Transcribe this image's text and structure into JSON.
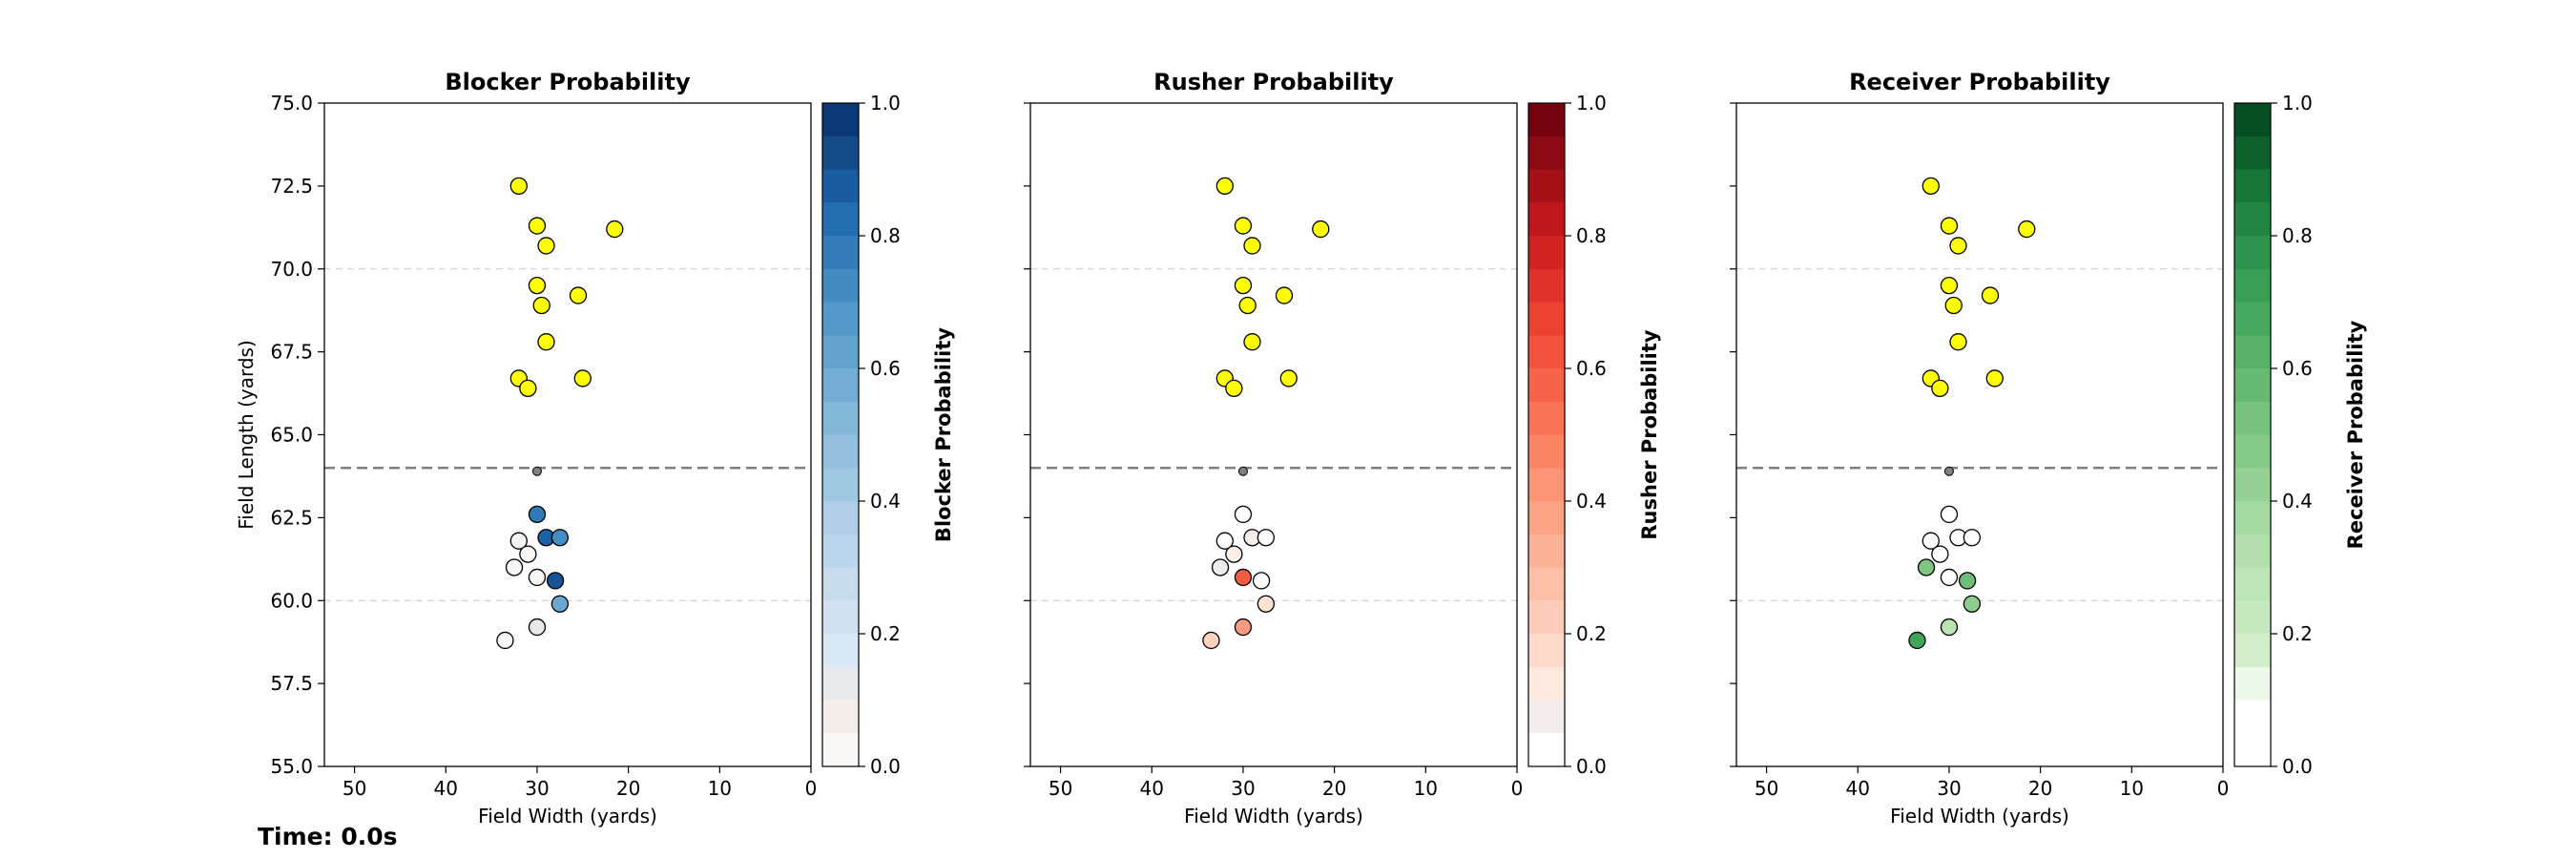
{
  "time_label": "Time: 0.0s",
  "colors": {
    "offense_fill": "#ffff00",
    "ball_fill": "#808080",
    "marker_edge": "#000000",
    "line_of_scrimmage": "#808080",
    "gridline": "#d3d3d3"
  },
  "chart_data": [
    {
      "type": "scatter",
      "title": "Blocker Probability",
      "xlabel": "Field Width (yards)",
      "ylabel": "Field Length (yards)",
      "xlim": [
        53.3,
        0
      ],
      "ylim": [
        55,
        75
      ],
      "x_inverted": true,
      "xticks": [
        "50",
        "40",
        "30",
        "20",
        "10",
        "0"
      ],
      "yticks": [
        "55.0",
        "57.5",
        "60.0",
        "62.5",
        "65.0",
        "67.5",
        "70.0",
        "72.5",
        "75.0"
      ],
      "grid": "horizontal dashed",
      "line_of_scrimmage_y": 64.0,
      "colormap": "Blues",
      "colorbar_label": "Blocker Probability",
      "colorbar_range": [
        0,
        1
      ],
      "colorbar_ticks": [
        "0.0",
        "0.2",
        "0.4",
        "0.6",
        "0.8",
        "1.0"
      ],
      "colormap_stops": [
        [
          0,
          "#ffffff"
        ],
        [
          0.1,
          "#f0e8e2"
        ],
        [
          0.15,
          "#dfeaf6"
        ],
        [
          0.3,
          "#c2d8ec"
        ],
        [
          0.5,
          "#8cbddb"
        ],
        [
          0.7,
          "#4a93c6"
        ],
        [
          0.85,
          "#1c65a9"
        ],
        [
          1,
          "#08306b"
        ]
      ],
      "offense": [
        [
          32,
          72.5
        ],
        [
          30,
          71.3
        ],
        [
          29,
          70.7
        ],
        [
          21.5,
          71.2
        ],
        [
          30,
          69.5
        ],
        [
          29.5,
          68.9
        ],
        [
          25.5,
          69.2
        ],
        [
          29,
          67.8
        ],
        [
          32,
          66.7
        ],
        [
          31,
          66.4
        ],
        [
          25,
          66.7
        ]
      ],
      "ball": [
        30,
        63.9
      ],
      "defense": [
        {
          "x": 30,
          "y": 62.6,
          "p": 0.78
        },
        {
          "x": 32,
          "y": 61.8,
          "p": 0.05
        },
        {
          "x": 31,
          "y": 61.4,
          "p": 0.05
        },
        {
          "x": 29,
          "y": 61.9,
          "p": 0.86
        },
        {
          "x": 27.5,
          "y": 61.9,
          "p": 0.72
        },
        {
          "x": 32.5,
          "y": 61.0,
          "p": 0.05
        },
        {
          "x": 30,
          "y": 60.7,
          "p": 0.05
        },
        {
          "x": 28,
          "y": 60.6,
          "p": 0.9
        },
        {
          "x": 27.5,
          "y": 59.9,
          "p": 0.6
        },
        {
          "x": 30,
          "y": 59.2,
          "p": 0.12
        },
        {
          "x": 33.5,
          "y": 58.8,
          "p": 0.04
        }
      ]
    },
    {
      "type": "scatter",
      "title": "Rusher Probability",
      "xlabel": "Field Width (yards)",
      "ylabel": "",
      "xlim": [
        53.3,
        0
      ],
      "ylim": [
        55,
        75
      ],
      "x_inverted": true,
      "xticks": [
        "50",
        "40",
        "30",
        "20",
        "10",
        "0"
      ],
      "yticks": [],
      "grid": "horizontal dashed",
      "line_of_scrimmage_y": 64.0,
      "colormap": "Reds",
      "colorbar_label": "Rusher Probability",
      "colorbar_range": [
        0,
        1
      ],
      "colorbar_ticks": [
        "0.0",
        "0.2",
        "0.4",
        "0.6",
        "0.8",
        "1.0"
      ],
      "colormap_stops": [
        [
          0,
          "#ffffff"
        ],
        [
          0.05,
          "#ffffff"
        ],
        [
          0.06,
          "#ececec"
        ],
        [
          0.1,
          "#fff0e8"
        ],
        [
          0.2,
          "#fdd3c0"
        ],
        [
          0.35,
          "#fcab8e"
        ],
        [
          0.5,
          "#fb7c5c"
        ],
        [
          0.65,
          "#f14a36"
        ],
        [
          0.8,
          "#cc1a1d"
        ],
        [
          1,
          "#67000d"
        ]
      ],
      "offense": [
        [
          32,
          72.5
        ],
        [
          30,
          71.3
        ],
        [
          29,
          70.7
        ],
        [
          21.5,
          71.2
        ],
        [
          30,
          69.5
        ],
        [
          29.5,
          68.9
        ],
        [
          25.5,
          69.2
        ],
        [
          29,
          67.8
        ],
        [
          32,
          66.7
        ],
        [
          31,
          66.4
        ],
        [
          25,
          66.7
        ]
      ],
      "ball": [
        30,
        63.9
      ],
      "defense": [
        {
          "x": 30,
          "y": 62.6,
          "p": 0.02
        },
        {
          "x": 32,
          "y": 61.8,
          "p": 0.05
        },
        {
          "x": 31,
          "y": 61.4,
          "p": 0.1
        },
        {
          "x": 29,
          "y": 61.9,
          "p": 0.08
        },
        {
          "x": 27.5,
          "y": 61.9,
          "p": 0.05
        },
        {
          "x": 32.5,
          "y": 61.0,
          "p": 0.06
        },
        {
          "x": 30,
          "y": 60.7,
          "p": 0.6
        },
        {
          "x": 28,
          "y": 60.6,
          "p": 0.04
        },
        {
          "x": 27.5,
          "y": 59.9,
          "p": 0.15
        },
        {
          "x": 30,
          "y": 59.2,
          "p": 0.4
        },
        {
          "x": 33.5,
          "y": 58.8,
          "p": 0.2
        }
      ]
    },
    {
      "type": "scatter",
      "title": "Receiver Probability",
      "xlabel": "Field Width (yards)",
      "ylabel": "",
      "xlim": [
        53.3,
        0
      ],
      "ylim": [
        55,
        75
      ],
      "x_inverted": true,
      "xticks": [
        "50",
        "40",
        "30",
        "20",
        "10",
        "0"
      ],
      "yticks": [],
      "grid": "horizontal dashed",
      "line_of_scrimmage_y": 64.0,
      "colormap": "Greens",
      "colorbar_label": "Receiver Probability",
      "colorbar_range": [
        0,
        1
      ],
      "colorbar_ticks": [
        "0.0",
        "0.2",
        "0.4",
        "0.6",
        "0.8",
        "1.0"
      ],
      "colormap_stops": [
        [
          0,
          "#ffffff"
        ],
        [
          0.12,
          "#ffffff"
        ],
        [
          0.13,
          "#d9f0d3"
        ],
        [
          0.3,
          "#b9e3b1"
        ],
        [
          0.5,
          "#7fc683"
        ],
        [
          0.7,
          "#3fa55a"
        ],
        [
          0.85,
          "#1c7f3d"
        ],
        [
          1,
          "#00441b"
        ]
      ],
      "offense": [
        [
          32,
          72.5
        ],
        [
          30,
          71.3
        ],
        [
          29,
          70.7
        ],
        [
          21.5,
          71.2
        ],
        [
          30,
          69.5
        ],
        [
          29.5,
          68.9
        ],
        [
          25.5,
          69.2
        ],
        [
          29,
          67.8
        ],
        [
          32,
          66.7
        ],
        [
          31,
          66.4
        ],
        [
          25,
          66.7
        ]
      ],
      "ball": [
        30,
        63.9
      ],
      "defense": [
        {
          "x": 30,
          "y": 62.6,
          "p": 0.02
        },
        {
          "x": 32,
          "y": 61.8,
          "p": 0.05
        },
        {
          "x": 31,
          "y": 61.4,
          "p": 0.06
        },
        {
          "x": 29,
          "y": 61.9,
          "p": 0.08
        },
        {
          "x": 27.5,
          "y": 61.9,
          "p": 0.05
        },
        {
          "x": 32.5,
          "y": 61.0,
          "p": 0.5
        },
        {
          "x": 30,
          "y": 60.7,
          "p": 0.06
        },
        {
          "x": 28,
          "y": 60.6,
          "p": 0.55
        },
        {
          "x": 27.5,
          "y": 59.9,
          "p": 0.45
        },
        {
          "x": 30,
          "y": 59.2,
          "p": 0.3
        },
        {
          "x": 33.5,
          "y": 58.8,
          "p": 0.7
        }
      ]
    }
  ]
}
